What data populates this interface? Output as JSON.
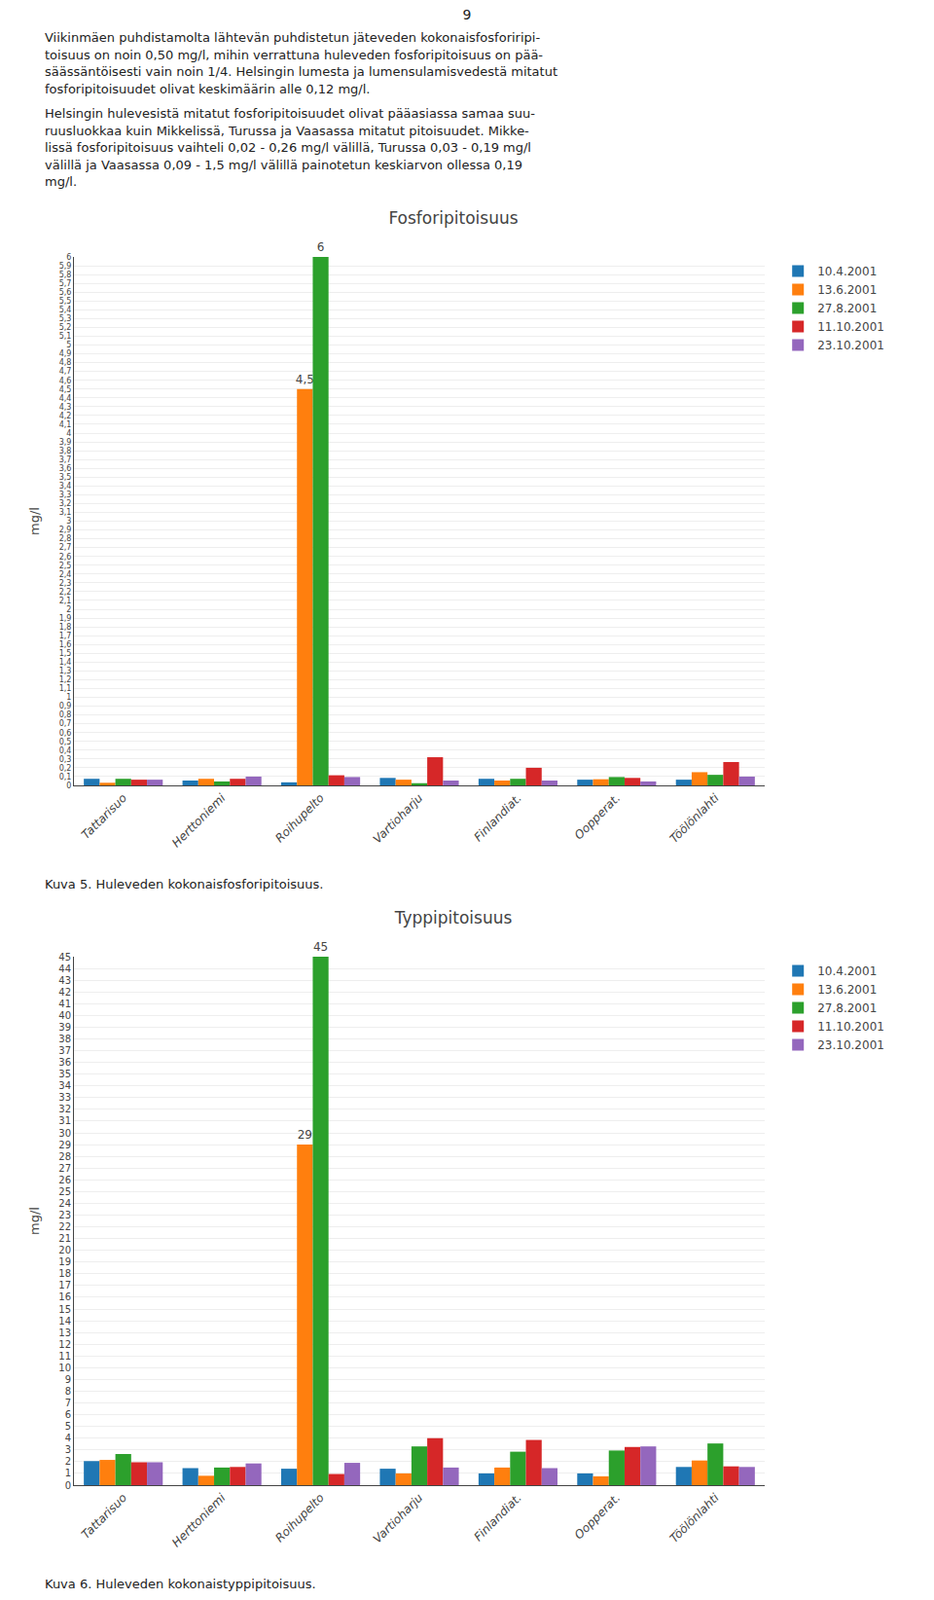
{
  "page_number": "9",
  "paragraphs": [
    [
      "Viikinmäen puhdistamolta lähtevän puhdistetun jäteveden kokonaisfosforiripi-",
      "toisuus on noin 0,50 mg/l, mihin verrattuna huleveden fosforipitoisuus on pää-",
      "säässäntöisesti vain noin 1/4. Helsingin lumesta ja lumensulamisvedestä mitatut",
      "fosforipitoisuudet olivat keskimäärin alle 0,12 mg/l."
    ],
    [
      "Helsingin hulevesistä mitatut fosforipitoisuudet olivat pääasiassa samaa suu-",
      "ruusluokkaa kuin Mikkelissä, Turussa ja Vaasassa mitatut pitoisuudet. Mikke-",
      "lissä fosforipitoisuus vaihteli 0,02 - 0,26 mg/l välillä, Turussa 0,03 - 0,19 mg/l",
      "välillä ja Vaasassa 0,09 - 1,5 mg/l välillä painotetun keskiarvon ollessa 0,19",
      "mg/l."
    ]
  ],
  "chart_data": [
    {
      "type": "bar",
      "title": "Fosforipitoisuus",
      "ylabel": "mg/l",
      "caption": "Kuva 5. Huleveden kokonaisfosforipitoisuus.",
      "categories": [
        "Tattarisuo",
        "Herttoniemi",
        "Roihupelto",
        "Vartioharju",
        "Finlandiat.",
        "Oopperat.",
        "Töölönlahti"
      ],
      "series": [
        {
          "name": "10.4.2001",
          "values": [
            0.075,
            0.055,
            0.035,
            0.085,
            0.075,
            0.065,
            0.065
          ]
        },
        {
          "name": "13.6.2001",
          "values": [
            0.03,
            0.075,
            4.5,
            0.065,
            0.055,
            0.07,
            0.15
          ]
        },
        {
          "name": "27.8.2001",
          "values": [
            0.075,
            0.045,
            6.0,
            0.025,
            0.075,
            0.095,
            0.12
          ]
        },
        {
          "name": "11.10.2001",
          "values": [
            0.065,
            0.075,
            0.115,
            0.32,
            0.2,
            0.085,
            0.265
          ]
        },
        {
          "name": "23.10.2001",
          "values": [
            0.065,
            0.1,
            0.095,
            0.055,
            0.055,
            0.045,
            0.1
          ]
        }
      ],
      "annotations": [
        {
          "text": "4,5",
          "category": "Roihupelto",
          "series": "13.6.2001"
        },
        {
          "text": "6",
          "category": "Roihupelto",
          "series": "27.8.2001"
        }
      ],
      "ylim": [
        0,
        6
      ],
      "yticks": [
        0,
        {
          "value": 0.1,
          "label": "0,1"
        },
        {
          "value": 0.2,
          "label": "0,2"
        },
        {
          "value": 0.3,
          "label": "0,3"
        },
        {
          "value": 0.4,
          "label": "0,4"
        },
        {
          "value": 0.5,
          "label": "0,5"
        },
        {
          "value": 0.6,
          "label": "0,6"
        },
        {
          "value": 0.7,
          "label": "0,7"
        },
        {
          "value": 0.8,
          "label": "0,8"
        },
        {
          "value": 0.9,
          "label": "0,9"
        },
        1,
        {
          "value": 1.1,
          "label": "1,1"
        },
        {
          "value": 1.2,
          "label": "1,2"
        },
        {
          "value": 1.3,
          "label": "1,3"
        },
        {
          "value": 1.4,
          "label": "1,4"
        },
        {
          "value": 1.5,
          "label": "1,5"
        },
        {
          "value": 1.6,
          "label": "1,6"
        },
        {
          "value": 1.7,
          "label": "1,7"
        },
        {
          "value": 1.8,
          "label": "1,8"
        },
        {
          "value": 1.9,
          "label": "1,9"
        },
        2,
        {
          "value": 2.1,
          "label": "2,1"
        },
        {
          "value": 2.2,
          "label": "2,2"
        },
        {
          "value": 2.3,
          "label": "2,3"
        },
        {
          "value": 2.4,
          "label": "2,4"
        },
        {
          "value": 2.5,
          "label": "2,5"
        },
        {
          "value": 2.6,
          "label": "2,6"
        },
        {
          "value": 2.7,
          "label": "2,7"
        },
        {
          "value": 2.8,
          "label": "2,8"
        },
        {
          "value": 2.9,
          "label": "2,9"
        },
        3,
        {
          "value": 3.1,
          "label": "3,1"
        },
        {
          "value": 3.2,
          "label": "3,2"
        },
        {
          "value": 3.3,
          "label": "3,3"
        },
        {
          "value": 3.4,
          "label": "3,4"
        },
        {
          "value": 3.5,
          "label": "3,5"
        },
        {
          "value": 3.6,
          "label": "3,6"
        },
        {
          "value": 3.7,
          "label": "3,7"
        },
        {
          "value": 3.8,
          "label": "3,8"
        },
        {
          "value": 3.9,
          "label": "3,9"
        },
        4,
        {
          "value": 4.1,
          "label": "4,1"
        },
        {
          "value": 4.2,
          "label": "4,2"
        },
        {
          "value": 4.3,
          "label": "4,3"
        },
        {
          "value": 4.4,
          "label": "4,4"
        },
        {
          "value": 4.5,
          "label": "4,5"
        },
        {
          "value": 4.6,
          "label": "4,6"
        },
        {
          "value": 4.7,
          "label": "4,7"
        },
        {
          "value": 4.8,
          "label": "4,8"
        },
        {
          "value": 4.9,
          "label": "4,9"
        },
        5,
        {
          "value": 5.1,
          "label": "5,1"
        },
        {
          "value": 5.2,
          "label": "5,2"
        },
        {
          "value": 5.3,
          "label": "5,3"
        },
        {
          "value": 5.4,
          "label": "5,4"
        },
        {
          "value": 5.5,
          "label": "5,5"
        },
        {
          "value": 5.6,
          "label": "5,6"
        },
        {
          "value": 5.7,
          "label": "5,7"
        },
        {
          "value": 5.8,
          "label": "5,8"
        },
        {
          "value": 5.9,
          "label": "5,9"
        },
        6
      ],
      "grid": true,
      "legend": "right"
    },
    {
      "type": "bar",
      "title": "Typpipitoisuus",
      "ylabel": "mg/l",
      "caption": "Kuva 6. Huleveden kokonaistyppipitoisuus.",
      "categories": [
        "Tattarisuo",
        "Herttoniemi",
        "Roihupelto",
        "Vartioharju",
        "Finlandiat.",
        "Oopperat.",
        "Töölönlahti"
      ],
      "series": [
        {
          "name": "10.4.2001",
          "values": [
            2.05,
            1.45,
            1.4,
            1.4,
            1.0,
            1.0,
            1.55
          ]
        },
        {
          "name": "13.6.2001",
          "values": [
            2.15,
            0.8,
            29.0,
            1.0,
            1.5,
            0.75,
            2.1
          ]
        },
        {
          "name": "27.8.2001",
          "values": [
            2.65,
            1.5,
            45.0,
            3.3,
            2.85,
            2.95,
            3.55
          ]
        },
        {
          "name": "11.10.2001",
          "values": [
            1.95,
            1.55,
            0.95,
            4.0,
            3.85,
            3.25,
            1.6
          ]
        },
        {
          "name": "23.10.2001",
          "values": [
            1.95,
            1.85,
            1.9,
            1.5,
            1.45,
            3.3,
            1.55
          ]
        }
      ],
      "annotations": [
        {
          "text": "29",
          "category": "Roihupelto",
          "series": "13.6.2001"
        },
        {
          "text": "45",
          "category": "Roihupelto",
          "series": "27.8.2001"
        }
      ],
      "ylim": [
        0,
        45
      ],
      "yticks": [
        0,
        1,
        2,
        3,
        4,
        5,
        6,
        7,
        8,
        9,
        10,
        11,
        12,
        13,
        14,
        15,
        16,
        17,
        18,
        19,
        20,
        21,
        22,
        23,
        24,
        25,
        26,
        27,
        28,
        29,
        30,
        31,
        32,
        33,
        34,
        35,
        36,
        37,
        38,
        39,
        40,
        41,
        42,
        43,
        44,
        45
      ],
      "grid": true,
      "legend": "right"
    }
  ]
}
